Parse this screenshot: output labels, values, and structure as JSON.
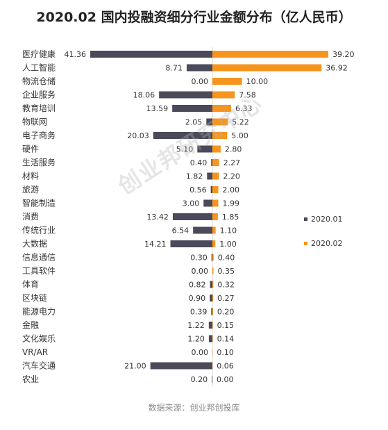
{
  "chart_data": {
    "type": "bar",
    "title": "2020.02 国内投融资细分行业金额分布（亿人民币）",
    "orientation": "horizontal-diverging",
    "categories": [
      "医疗健康",
      "人工智能",
      "物流仓储",
      "企业服务",
      "教育培训",
      "物联网",
      "电子商务",
      "硬件",
      "生活服务",
      "材料",
      "旅游",
      "智能制造",
      "消费",
      "传统行业",
      "大数据",
      "信息通信",
      "工具软件",
      "体育",
      "区块链",
      "能源电力",
      "金融",
      "文化娱乐",
      "VR/AR",
      "汽车交通",
      "农业"
    ],
    "series": [
      {
        "name": "2020.01",
        "color": "#4a4a5a",
        "direction": "left",
        "values": [
          41.36,
          8.71,
          0.0,
          18.06,
          13.59,
          2.05,
          20.03,
          5.1,
          0.4,
          1.82,
          0.56,
          3.0,
          13.42,
          6.54,
          14.21,
          0.3,
          0.0,
          0.82,
          0.9,
          0.39,
          1.22,
          1.2,
          0.0,
          21.0,
          0.2
        ]
      },
      {
        "name": "2020.02",
        "color": "#f7941d",
        "direction": "right",
        "values": [
          39.2,
          36.92,
          10.0,
          7.58,
          6.33,
          5.22,
          5.0,
          2.8,
          2.27,
          2.2,
          2.0,
          1.99,
          1.85,
          1.1,
          1.0,
          0.4,
          0.35,
          0.32,
          0.27,
          0.2,
          0.15,
          0.14,
          0.1,
          0.06,
          0.0
        ]
      }
    ],
    "legend_position": "right"
  },
  "watermark": "创业邦研究中心",
  "source": "数据来源：创业邦创投库"
}
